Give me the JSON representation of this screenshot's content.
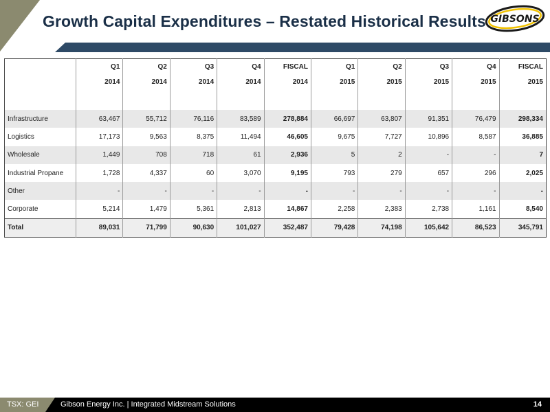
{
  "header": {
    "title": "Growth Capital Expenditures – Restated Historical Results",
    "logo_text": "GIBSONS",
    "accent_color": "#8b8a6f",
    "bar_color": "#2e4a66",
    "title_color": "#1a2f47"
  },
  "table": {
    "columns": [
      {
        "q": "Q1",
        "y": "2014"
      },
      {
        "q": "Q2",
        "y": "2014"
      },
      {
        "q": "Q3",
        "y": "2014"
      },
      {
        "q": "Q4",
        "y": "2014"
      },
      {
        "q": "FISCAL",
        "y": "2014"
      },
      {
        "q": "Q1",
        "y": "2015"
      },
      {
        "q": "Q2",
        "y": "2015"
      },
      {
        "q": "Q3",
        "y": "2015"
      },
      {
        "q": "Q4",
        "y": "2015"
      },
      {
        "q": "FISCAL",
        "y": "2015"
      }
    ],
    "rows": [
      {
        "label": "Infrastructure",
        "values": [
          "63,467",
          "55,712",
          "76,116",
          "83,589",
          "278,884",
          "66,697",
          "63,807",
          "91,351",
          "76,479",
          "298,334"
        ]
      },
      {
        "label": "Logistics",
        "values": [
          "17,173",
          "9,563",
          "8,375",
          "11,494",
          "46,605",
          "9,675",
          "7,727",
          "10,896",
          "8,587",
          "36,885"
        ]
      },
      {
        "label": "Wholesale",
        "values": [
          "1,449",
          "708",
          "718",
          "61",
          "2,936",
          "5",
          "2",
          "-",
          "-",
          "7"
        ]
      },
      {
        "label": "Industrial Propane",
        "values": [
          "1,728",
          "4,337",
          "60",
          "3,070",
          "9,195",
          "793",
          "279",
          "657",
          "296",
          "2,025"
        ]
      },
      {
        "label": "Other",
        "values": [
          "-",
          "-",
          "-",
          "-",
          "-",
          "-",
          "-",
          "-",
          "-",
          "-"
        ]
      },
      {
        "label": "Corporate",
        "values": [
          "5,214",
          "1,479",
          "5,361",
          "2,813",
          "14,867",
          "2,258",
          "2,383",
          "2,738",
          "1,161",
          "8,540"
        ]
      }
    ],
    "total": {
      "label": "Total",
      "values": [
        "89,031",
        "71,799",
        "90,630",
        "101,027",
        "352,487",
        "79,428",
        "74,198",
        "105,642",
        "86,523",
        "345,791"
      ]
    }
  },
  "footer": {
    "ticker": "TSX: GEI",
    "company": "Gibson Energy Inc.  |  Integrated Midstream Solutions",
    "page": "14"
  }
}
